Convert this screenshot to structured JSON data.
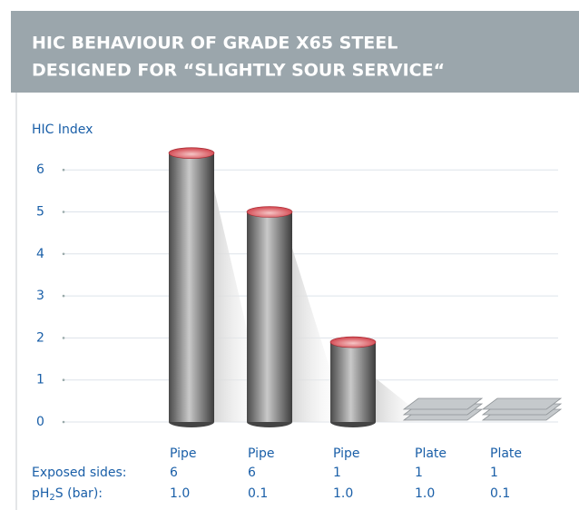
{
  "chart_data": {
    "type": "bar",
    "title": [
      "HIC BEHAVIOUR OF GRADE X65 STEEL",
      "DESIGNED FOR “SLIGHTLY SOUR SERVICE“"
    ],
    "ylabel": "HIC Index",
    "categories": [
      "Pipe",
      "Pipe",
      "Pipe",
      "Plate",
      "Plate"
    ],
    "values": [
      6.4,
      5.0,
      1.9,
      0,
      0
    ],
    "ylim": [
      0,
      7
    ],
    "yticks": [
      0,
      1,
      2,
      3,
      4,
      5,
      6
    ],
    "grid": true,
    "color": "#8a8a8a",
    "top_color": "#d9535a",
    "rows": [
      {
        "label": "Exposed sides:",
        "values": [
          6,
          6,
          1,
          1,
          1
        ]
      },
      {
        "label": [
          "pH",
          "2",
          "S (bar):"
        ],
        "values": [
          "1.0",
          "0.1",
          "1.0",
          "1.0",
          "0.1"
        ]
      }
    ]
  }
}
